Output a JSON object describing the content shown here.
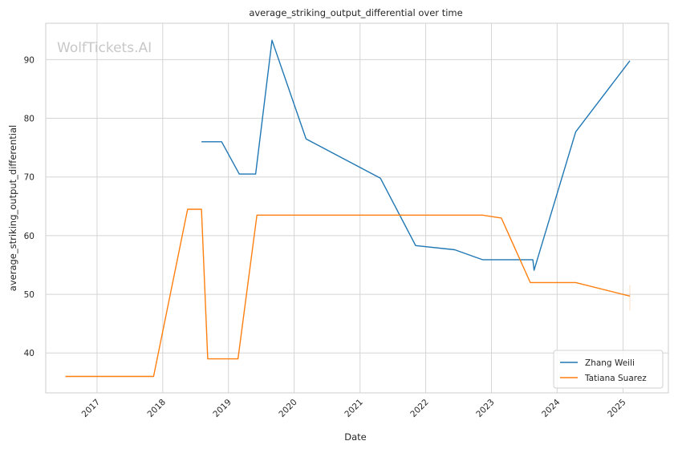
{
  "watermark": "WolfTickets.AI",
  "chart_data": {
    "type": "line",
    "title": "average_striking_output_differential over time",
    "xlabel": "Date",
    "ylabel": "average_striking_output_differential",
    "x_ticks": [
      "2017",
      "2018",
      "2019",
      "2020",
      "2021",
      "2022",
      "2023",
      "2024",
      "2025"
    ],
    "y_ticks": [
      40,
      50,
      60,
      70,
      80,
      90
    ],
    "xlim": [
      "2016-03-22",
      "2025-09-10"
    ],
    "ylim": [
      33.2,
      96.2
    ],
    "grid": true,
    "legend_position": "bottom-right",
    "series": [
      {
        "name": "Zhang Weili",
        "color": "#1f77b4",
        "points": [
          [
            "2018-08-04",
            76.0
          ],
          [
            "2018-11-24",
            76.0
          ],
          [
            "2019-03-02",
            70.5
          ],
          [
            "2019-06-01",
            70.5
          ],
          [
            "2019-08-31",
            93.3
          ],
          [
            "2020-03-07",
            76.5
          ],
          [
            "2021-04-24",
            69.8
          ],
          [
            "2021-11-06",
            58.3
          ],
          [
            "2022-06-11",
            57.6
          ],
          [
            "2022-11-12",
            55.9
          ],
          [
            "2023-08-19",
            55.9
          ],
          [
            "2023-08-26",
            54.1
          ],
          [
            "2024-04-13",
            77.7
          ],
          [
            "2025-02-08",
            89.8
          ]
        ]
      },
      {
        "name": "Tatiana Suarez",
        "color": "#ff7f0e",
        "points": [
          [
            "2016-07-09",
            36.0
          ],
          [
            "2017-11-11",
            36.0
          ],
          [
            "2018-05-19",
            64.5
          ],
          [
            "2018-08-04",
            64.5
          ],
          [
            "2018-09-08",
            39.0
          ],
          [
            "2019-02-23",
            39.0
          ],
          [
            "2019-06-08",
            63.5
          ],
          [
            "2022-11-12",
            63.5
          ],
          [
            "2023-02-25",
            63.0
          ],
          [
            "2023-08-05",
            52.0
          ],
          [
            "2024-04-13",
            52.0
          ],
          [
            "2025-02-08",
            49.7
          ]
        ]
      }
    ]
  }
}
